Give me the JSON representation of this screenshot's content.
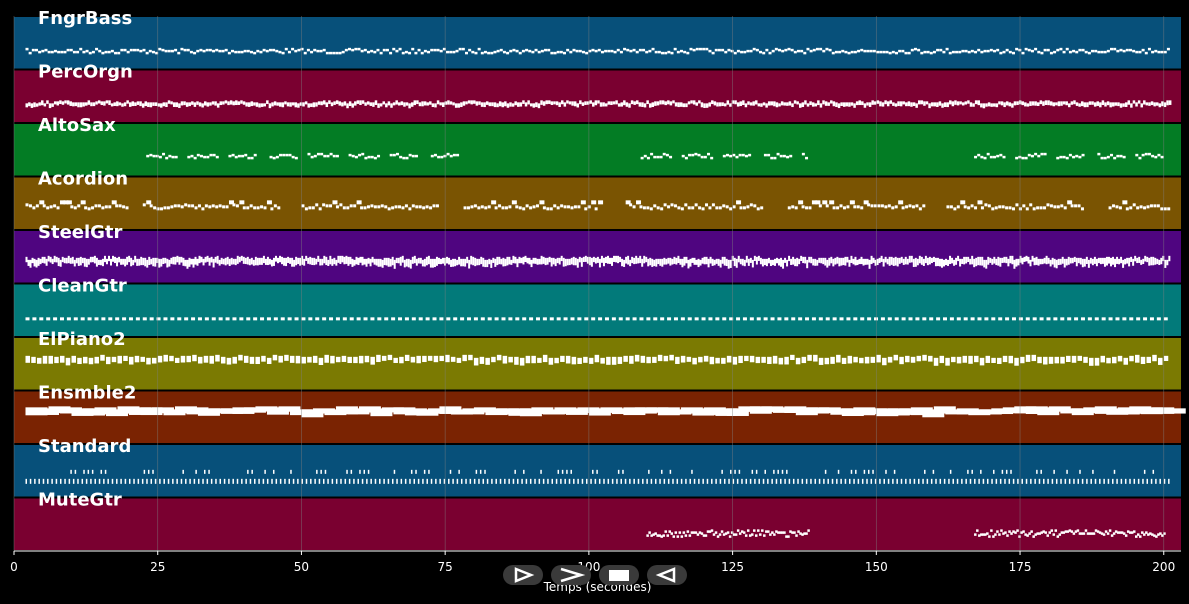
{
  "theme": {
    "background": "#000000",
    "note_color": "#ffffff",
    "grid_color": "#7f7f7f",
    "tick_color": "#ffffff"
  },
  "xaxis": {
    "label": "Temps (secondes)",
    "ticks": [
      "0",
      "25",
      "50",
      "75",
      "100",
      "125",
      "150",
      "175",
      "200"
    ],
    "range": [
      0,
      203
    ]
  },
  "tracks": [
    {
      "name": "FngrBass",
      "color": "#07507a",
      "pattern": "bass"
    },
    {
      "name": "PercOrgn",
      "color": "#7a0030",
      "pattern": "dense"
    },
    {
      "name": "AltoSax",
      "color": "#037c24",
      "pattern": "sax"
    },
    {
      "name": "Acordion",
      "color": "#7a5402",
      "pattern": "accordion"
    },
    {
      "name": "SteelGtr",
      "color": "#4f0580",
      "pattern": "steel"
    },
    {
      "name": "CleanGtr",
      "color": "#027a7a",
      "pattern": "dash"
    },
    {
      "name": "ElPiano2",
      "color": "#7b7a02",
      "pattern": "blocks"
    },
    {
      "name": "Ensmble2",
      "color": "#7a2302",
      "pattern": "bar"
    },
    {
      "name": "Standard",
      "color": "#07507a",
      "pattern": "drums"
    },
    {
      "name": "MuteGtr",
      "color": "#7a0030",
      "pattern": "mute"
    }
  ],
  "controls": [
    {
      "name": "play-button",
      "icon": "play-icon"
    },
    {
      "name": "forward-button",
      "icon": "chevron-right-icon"
    },
    {
      "name": "stop-button",
      "icon": "stop-icon"
    },
    {
      "name": "rewind-button",
      "icon": "rewind-icon"
    }
  ]
}
